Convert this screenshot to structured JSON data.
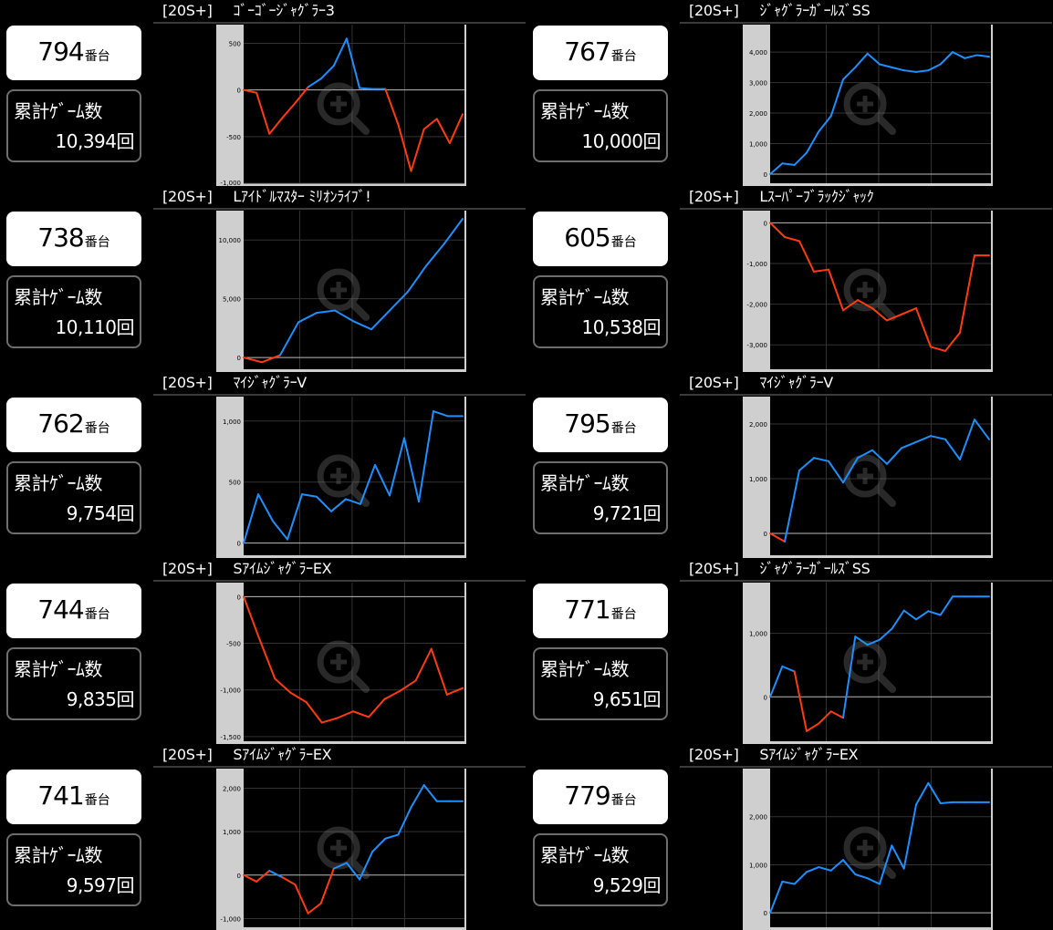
{
  "colors": {
    "up": "#1e8fff",
    "down": "#ff3b12",
    "frame": "#cfcfcf",
    "plot": "#000000",
    "grid": "#333333",
    "zero": "#bbbbbb"
  },
  "panels": [
    {
      "header": {
        "mode": "[20S+]",
        "name": "ｺﾞｰｺﾞｰｼﾞｬｸﾞﾗｰ3"
      },
      "unit": {
        "num": "794",
        "suffix": "番台"
      },
      "games": {
        "label": "累計ｹﾞｰﾑ数",
        "value": "10,394回"
      }
    },
    {
      "header": {
        "mode": "[20S+]",
        "name": "ｼﾞｬｸﾞﾗｰｶﾞｰﾙｽﾞSS"
      },
      "unit": {
        "num": "767",
        "suffix": "番台"
      },
      "games": {
        "label": "累計ｹﾞｰﾑ数",
        "value": "10,000回"
      }
    },
    {
      "header": {
        "mode": "[20S+]",
        "name": "Lｱｲﾄﾞﾙﾏｽﾀｰ ﾐﾘｵﾝﾗｲﾌﾞ!"
      },
      "unit": {
        "num": "738",
        "suffix": "番台"
      },
      "games": {
        "label": "累計ｹﾞｰﾑ数",
        "value": "10,110回"
      }
    },
    {
      "header": {
        "mode": "[20S+]",
        "name": "Lｽｰﾊﾟｰﾌﾞﾗｯｸｼﾞｬｯｸ"
      },
      "unit": {
        "num": "605",
        "suffix": "番台"
      },
      "games": {
        "label": "累計ｹﾞｰﾑ数",
        "value": "10,538回"
      }
    },
    {
      "header": {
        "mode": "[20S+]",
        "name": "ﾏｲｼﾞｬｸﾞﾗｰV"
      },
      "unit": {
        "num": "762",
        "suffix": "番台"
      },
      "games": {
        "label": "累計ｹﾞｰﾑ数",
        "value": "9,754回"
      }
    },
    {
      "header": {
        "mode": "[20S+]",
        "name": "ﾏｲｼﾞｬｸﾞﾗｰV"
      },
      "unit": {
        "num": "795",
        "suffix": "番台"
      },
      "games": {
        "label": "累計ｹﾞｰﾑ数",
        "value": "9,721回"
      }
    },
    {
      "header": {
        "mode": "[20S+]",
        "name": "SｱｲﾑｼﾞｬｸﾞﾗｰEX"
      },
      "unit": {
        "num": "744",
        "suffix": "番台"
      },
      "games": {
        "label": "累計ｹﾞｰﾑ数",
        "value": "9,835回"
      }
    },
    {
      "header": {
        "mode": "[20S+]",
        "name": "ｼﾞｬｸﾞﾗｰｶﾞｰﾙｽﾞSS"
      },
      "unit": {
        "num": "771",
        "suffix": "番台"
      },
      "games": {
        "label": "累計ｹﾞｰﾑ数",
        "value": "9,651回"
      }
    },
    {
      "header": {
        "mode": "[20S+]",
        "name": "SｱｲﾑｼﾞｬｸﾞﾗｰEX"
      },
      "unit": {
        "num": "741",
        "suffix": "番台"
      },
      "games": {
        "label": "累計ｹﾞｰﾑ数",
        "value": "9,597回"
      }
    },
    {
      "header": {
        "mode": "[20S+]",
        "name": "SｱｲﾑｼﾞｬｸﾞﾗｰEX"
      },
      "unit": {
        "num": "779",
        "suffix": "番台"
      },
      "games": {
        "label": "累計ｹﾞｰﾑ数",
        "value": "9,529回"
      }
    }
  ],
  "chart_data": [
    {
      "type": "line",
      "ylim": [
        -1000,
        700
      ],
      "yticks": [
        500,
        0,
        -500,
        -1000
      ],
      "ytick_labels": [
        "500",
        "0",
        "-500",
        "-1,000"
      ],
      "x": [
        0,
        1,
        2,
        3,
        4,
        5,
        6,
        7,
        8,
        9,
        10,
        11,
        12,
        13,
        14,
        15,
        16,
        17
      ],
      "y": [
        0,
        -30,
        -470,
        -300,
        -140,
        30,
        120,
        260,
        550,
        20,
        10,
        10,
        -370,
        -870,
        -420,
        -310,
        -570,
        -260
      ]
    },
    {
      "type": "line",
      "ylim": [
        -300,
        4900
      ],
      "yticks": [
        4000,
        3000,
        2000,
        1000,
        0
      ],
      "ytick_labels": [
        "4,000",
        "3,000",
        "2,000",
        "1,000",
        "0"
      ],
      "x": [
        0,
        1,
        2,
        3,
        4,
        5,
        6,
        7,
        8,
        9,
        10,
        11,
        12,
        13,
        14,
        15,
        16,
        17,
        18
      ],
      "y": [
        0,
        350,
        300,
        700,
        1400,
        1900,
        3100,
        3500,
        3950,
        3600,
        3500,
        3400,
        3350,
        3400,
        3600,
        4000,
        3800,
        3900,
        3850
      ]
    },
    {
      "type": "line",
      "ylim": [
        -1000,
        12500
      ],
      "yticks": [
        10000,
        5000,
        0
      ],
      "ytick_labels": [
        "10,000",
        "5,000",
        "0"
      ],
      "x": [
        0,
        1,
        2,
        3,
        4,
        5,
        6,
        7,
        8,
        9,
        10,
        11,
        12
      ],
      "y": [
        0,
        -400,
        200,
        3000,
        3800,
        4000,
        3100,
        2400,
        4000,
        5600,
        7800,
        9700,
        11800
      ]
    },
    {
      "type": "line",
      "ylim": [
        -3600,
        300
      ],
      "yticks": [
        0,
        -1000,
        -2000,
        -3000
      ],
      "ytick_labels": [
        "0",
        "-1,000",
        "-2,000",
        "-3,000"
      ],
      "x": [
        0,
        1,
        2,
        3,
        4,
        5,
        6,
        7,
        8,
        9,
        10,
        11,
        12,
        13,
        14,
        15
      ],
      "y": [
        0,
        -350,
        -450,
        -1200,
        -1150,
        -2150,
        -1900,
        -2100,
        -2400,
        -2250,
        -2100,
        -3050,
        -3150,
        -2700,
        -800,
        -800
      ]
    },
    {
      "type": "line",
      "ylim": [
        -100,
        1200
      ],
      "yticks": [
        1000,
        500,
        0
      ],
      "ytick_labels": [
        "1,000",
        "500",
        "0"
      ],
      "x": [
        0,
        1,
        2,
        3,
        4,
        5,
        6,
        7,
        8,
        9,
        10,
        11,
        12,
        13,
        14,
        15
      ],
      "y": [
        0,
        400,
        180,
        30,
        400,
        380,
        260,
        360,
        320,
        640,
        390,
        860,
        340,
        1080,
        1040,
        1040
      ]
    },
    {
      "type": "line",
      "ylim": [
        -400,
        2500
      ],
      "yticks": [
        2000,
        1000,
        0
      ],
      "ytick_labels": [
        "2,000",
        "1,000",
        "0"
      ],
      "x": [
        0,
        1,
        2,
        3,
        4,
        5,
        6,
        7,
        8,
        9,
        10,
        11,
        12,
        13,
        14,
        15
      ],
      "y": [
        0,
        -150,
        1150,
        1380,
        1320,
        930,
        1380,
        1520,
        1270,
        1560,
        1670,
        1780,
        1720,
        1350,
        2080,
        1720
      ]
    },
    {
      "type": "line",
      "ylim": [
        -1550,
        150
      ],
      "yticks": [
        0,
        -500,
        -1000,
        -1500
      ],
      "ytick_labels": [
        "0",
        "-500",
        "-1,000",
        "-1,500"
      ],
      "x": [
        0,
        1,
        2,
        3,
        4,
        5,
        6,
        7,
        8,
        9,
        10,
        11,
        12,
        13,
        14
      ],
      "y": [
        0,
        -450,
        -880,
        -1030,
        -1130,
        -1350,
        -1300,
        -1230,
        -1290,
        -1100,
        -1010,
        -900,
        -560,
        -1050,
        -980
      ]
    },
    {
      "type": "line",
      "ylim": [
        -700,
        1800
      ],
      "yticks": [
        1000,
        0
      ],
      "ytick_labels": [
        "1,000",
        "0"
      ],
      "x": [
        0,
        1,
        2,
        3,
        4,
        5,
        6,
        7,
        8,
        9,
        10,
        11,
        12,
        13,
        14,
        15,
        16,
        17,
        18
      ],
      "y": [
        0,
        480,
        400,
        -540,
        -420,
        -230,
        -330,
        950,
        820,
        900,
        1070,
        1360,
        1220,
        1350,
        1290,
        1580,
        1580,
        1580,
        1580
      ]
    },
    {
      "type": "line",
      "ylim": [
        -1200,
        2450
      ],
      "yticks": [
        2000,
        1000,
        0,
        -1000
      ],
      "ytick_labels": [
        "2,000",
        "1,000",
        "0",
        "-1,000"
      ],
      "x": [
        0,
        1,
        2,
        3,
        4,
        5,
        6,
        7,
        8,
        9,
        10,
        11,
        12,
        13,
        14,
        15,
        16,
        17
      ],
      "y": [
        0,
        -150,
        100,
        -50,
        -220,
        -880,
        -650,
        150,
        280,
        -100,
        540,
        840,
        930,
        1560,
        2070,
        1700,
        1700,
        1700
      ]
    },
    {
      "type": "line",
      "ylim": [
        -300,
        3000
      ],
      "yticks": [
        2000,
        1000,
        0
      ],
      "ytick_labels": [
        "2,000",
        "1,000",
        "0"
      ],
      "x": [
        0,
        1,
        2,
        3,
        4,
        5,
        6,
        7,
        8,
        9,
        10,
        11,
        12,
        13,
        14,
        15,
        16,
        17,
        18
      ],
      "y": [
        0,
        650,
        600,
        850,
        950,
        880,
        1100,
        800,
        720,
        600,
        1400,
        920,
        2250,
        2700,
        2280,
        2300,
        2300,
        2300,
        2300
      ]
    }
  ]
}
